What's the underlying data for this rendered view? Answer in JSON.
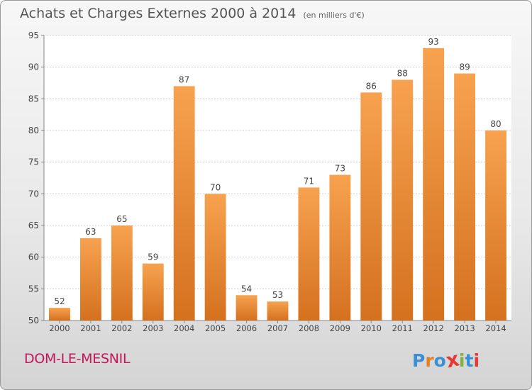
{
  "header": {
    "title": "Achats et Charges Externes 2000 à 2014",
    "unit": "(en milliers d'€)"
  },
  "footer": {
    "commune": "DOM-LE-MESNIL",
    "logo_letters": [
      "P",
      "r",
      "o",
      "x",
      "i",
      "t",
      "i"
    ],
    "logo_colors": [
      "#3b8fd6",
      "#e67e22",
      "#3b8fd6",
      "#e53935",
      "#7cb342",
      "#3b8fd6",
      "#e53935"
    ]
  },
  "chart_data": {
    "type": "bar",
    "title": "Achats et Charges Externes 2000 à 2014",
    "categories": [
      "2000",
      "2001",
      "2002",
      "2003",
      "2004",
      "2005",
      "2006",
      "2007",
      "2008",
      "2009",
      "2010",
      "2011",
      "2012",
      "2013",
      "2014"
    ],
    "values": [
      52,
      63,
      65,
      59,
      87,
      70,
      54,
      53,
      71,
      73,
      86,
      88,
      93,
      89,
      80
    ],
    "ylim": [
      50,
      95
    ],
    "yticks": [
      50,
      55,
      60,
      65,
      70,
      75,
      80,
      85,
      90,
      95
    ],
    "grid": true,
    "bar_color_top": "#f7a24f",
    "bar_color_bottom": "#d4711f"
  }
}
